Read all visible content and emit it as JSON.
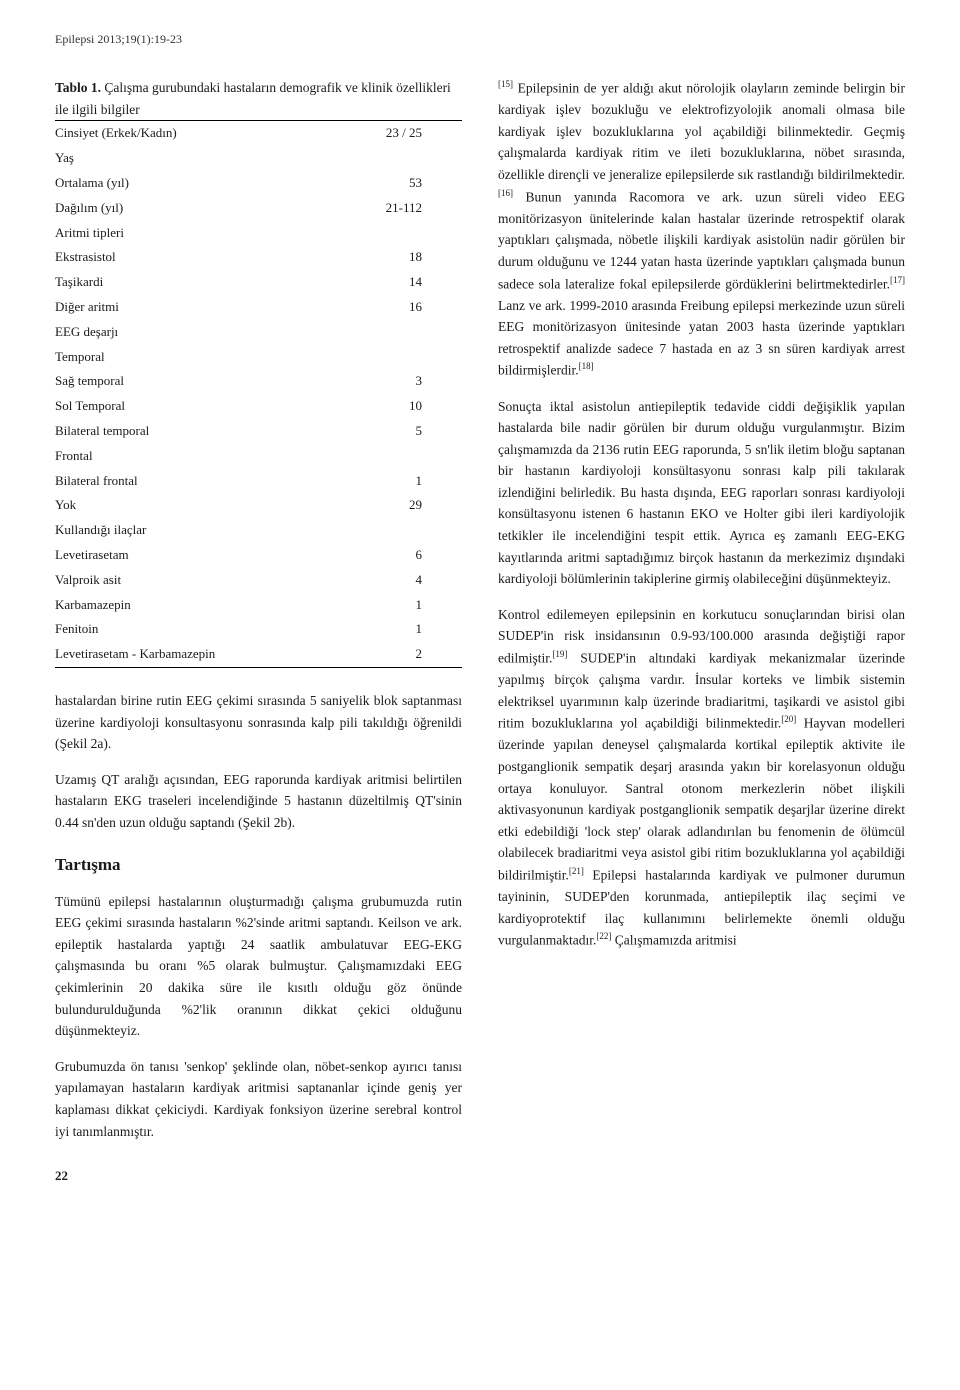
{
  "journal_header": "Epilepsi 2013;19(1):19-23",
  "table": {
    "title_bold": "Tablo 1.",
    "title_rest": "Çalışma gurubundaki hastaların demografik ve klinik özellikleri ile ilgili bilgiler",
    "rows": [
      {
        "label": "Cinsiyet (Erkek/Kadın)",
        "value": "23 / 25",
        "indent": 0
      },
      {
        "label": "Yaş",
        "value": "",
        "indent": 0
      },
      {
        "label": "Ortalama (yıl)",
        "value": "53",
        "indent": 1
      },
      {
        "label": "Dağılım (yıl)",
        "value": "21-112",
        "indent": 1
      },
      {
        "label": "Aritmi tipleri",
        "value": "",
        "indent": 0
      },
      {
        "label": "Ekstrasistol",
        "value": "18",
        "indent": 1
      },
      {
        "label": "Taşikardi",
        "value": "14",
        "indent": 1
      },
      {
        "label": "Diğer aritmi",
        "value": "16",
        "indent": 1
      },
      {
        "label": "EEG deşarjı",
        "value": "",
        "indent": 0
      },
      {
        "label": "Temporal",
        "value": "",
        "indent": 1
      },
      {
        "label": "Sağ temporal",
        "value": "3",
        "indent": 2
      },
      {
        "label": "Sol Temporal",
        "value": "10",
        "indent": 2
      },
      {
        "label": "Bilateral temporal",
        "value": "5",
        "indent": 2
      },
      {
        "label": "Frontal",
        "value": "",
        "indent": 1
      },
      {
        "label": "Bilateral frontal",
        "value": "1",
        "indent": 2
      },
      {
        "label": "Yok",
        "value": "29",
        "indent": 0
      },
      {
        "label": "Kullandığı ilaçlar",
        "value": "",
        "indent": 0
      },
      {
        "label": "Levetirasetam",
        "value": "6",
        "indent": 1
      },
      {
        "label": "Valproik asit",
        "value": "4",
        "indent": 1
      },
      {
        "label": "Karbamazepin",
        "value": "1",
        "indent": 1
      },
      {
        "label": "Fenitoin",
        "value": "1",
        "indent": 1
      },
      {
        "label": "Levetirasetam - Karbamazepin",
        "value": "2",
        "indent": 1
      }
    ]
  },
  "col_left": {
    "p1": "hastalardan birine rutin EEG çekimi sırasında 5 saniyelik blok saptanması üzerine kardiyoloji konsultasyonu sonrasında kalp pili takıldığı öğrenildi (Şekil 2a).",
    "p2": "Uzamış QT aralığı açısından, EEG raporunda kardiyak aritmisi belirtilen hastaların EKG traseleri incelendiğinde 5 hastanın düzeltilmiş QT'sinin 0.44 sn'den uzun olduğu saptandı (Şekil 2b).",
    "section": "Tartışma",
    "p3": "Tümünü epilepsi hastalarının oluşturmadığı çalışma grubumuzda rutin EEG çekimi sırasında hastaların %2'sinde aritmi saptandı. Keilson ve ark. epileptik hastalarda yaptığı 24 saatlik ambulatuvar EEG-EKG çalışmasında bu oranı %5 olarak bulmuştur. Çalışmamızdaki EEG çekimlerinin 20 dakika süre ile kısıtlı olduğu göz önünde bulundurulduğunda %2'lik oranının dikkat çekici olduğunu düşünmekteyiz.",
    "p4": "Grubumuzda ön tanısı 'senkop' şeklinde olan, nöbet-senkop ayırıcı tanısı yapılamayan hastaların kardiyak aritmisi saptananlar içinde geniş yer kaplaması dikkat çekiciydi. Kardiyak fonksiyon üzerine serebral kontrol iyi tanımlanmıştır."
  },
  "col_right": {
    "p1a": "[15]",
    "p1b": " Epilepsinin de yer aldığı akut nörolojik olayların zeminde belirgin bir kardiyak işlev bozukluğu ve elektrofizyolojik anomali olmasa bile kardiyak işlev bozukluklarına yol açabildiği bilinmektedir. Geçmiş çalışmalarda kardiyak ritim ve ileti bozukluklarına, nöbet sırasında, özellikle dirençli ve jeneralize epilepsilerde sık rastlandığı bildirilmektedir.",
    "p1c": "[16]",
    "p1d": " Bunun yanında Racomora ve ark. uzun süreli video EEG monitörizasyon ünitelerinde kalan hastalar üzerinde retrospektif olarak yaptıkları çalışmada, nöbetle ilişkili kardiyak asistolün nadir görülen bir durum olduğunu ve 1244 yatan hasta üzerinde yaptıkları çalışmada bunun sadece sola lateralize fokal epilepsilerde gördüklerini belirtmektedirler.",
    "p1e": "[17]",
    "p1f": " Lanz ve ark. 1999-2010 arasında Freibung epilepsi merkezinde uzun süreli EEG monitörizasyon ünitesinde yatan 2003 hasta üzerinde yaptıkları retrospektif analizde sadece 7 hastada en az 3 sn süren kardiyak arrest bildirmişlerdir.",
    "p1g": "[18]",
    "p2": "Sonuçta iktal asistolun antiepileptik tedavide ciddi değişiklik yapılan hastalarda bile nadir görülen bir durum olduğu vurgulanmıştır. Bizim çalışmamızda da 2136 rutin EEG raporunda, 5 sn'lik iletim bloğu saptanan bir hastanın kardiyoloji konsültasyonu sonrası kalp pili takılarak izlendiğini belirledik. Bu hasta dışında, EEG raporları sonrası kardiyoloji konsültasyonu istenen 6 hastanın EKO ve Holter gibi ileri kardiyolojik tetkikler ile incelendiğini tespit ettik. Ayrıca eş zamanlı EEG-EKG kayıtlarında aritmi saptadığımız birçok hastanın da merkezimiz dışındaki kardiyoloji bölümlerinin takiplerine girmiş olabileceğini düşünmekteyiz.",
    "p3a": "Kontrol edilemeyen epilepsinin en korkutucu sonuçlarından birisi olan SUDEP'in risk insidansının 0.9-93/100.000 arasında değiştiği rapor edilmiştir.",
    "p3b": "[19]",
    "p3c": " SUDEP'in altındaki kardiyak mekanizmalar üzerinde yapılmış birçok çalışma vardır. İnsular korteks ve limbik sistemin elektriksel uyarımının kalp üzerinde bradiaritmi, taşikardi ve asistol gibi ritim bozukluklarına yol açabildiği bilinmektedir.",
    "p3d": "[20]",
    "p3e": " Hayvan modelleri üzerinde yapılan deneysel çalışmalarda kortikal epileptik aktivite ile postganglionik sempatik deşarj arasında yakın bir korelasyonun olduğu ortaya konuluyor. Santral otonom merkezlerin nöbet ilişkili aktivasyonunun kardiyak postganglionik sempatik deşarjlar üzerine direkt etki edebildiği 'lock step' olarak adlandırılan bu fenomenin de ölümcül olabilecek bradiaritmi veya asistol gibi ritim bozukluklarına yol açabildiği bildirilmiştir.",
    "p3f": "[21]",
    "p3g": " Epilepsi hastalarında kardiyak ve pulmoner durumun tayininin, SUDEP'den korunmada, antiepileptik ilaç seçimi ve kardiyoprotektif ilaç kullanımını belirlemekte önemli olduğu vurgulanmaktadır.",
    "p3h": "[22]",
    "p3i": " Çalışmamızda aritmisi"
  },
  "page_number": "22"
}
